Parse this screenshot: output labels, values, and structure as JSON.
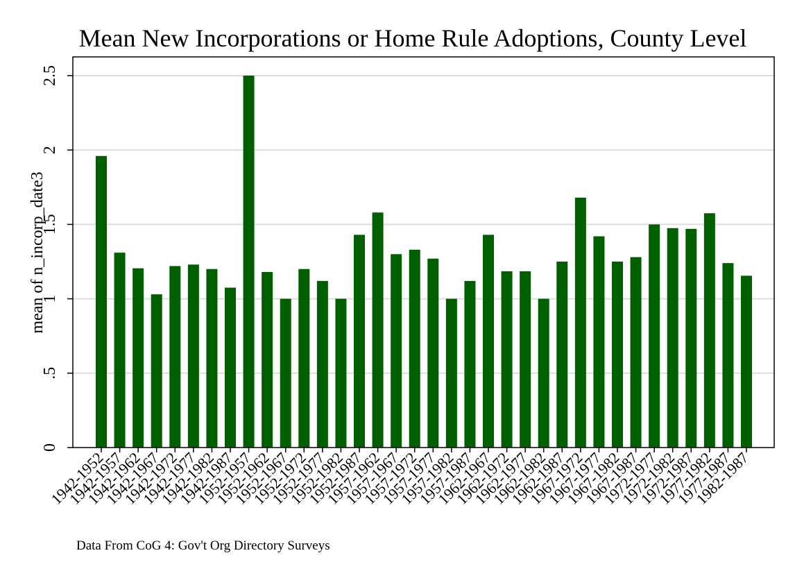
{
  "chart_data": {
    "type": "bar",
    "title": "Mean New Incorporations or Home Rule Adoptions, County Level",
    "xlabel": "",
    "ylabel": "mean of n_incorp_date3",
    "note": "Data From CoG 4: Gov't Org Directory Surveys",
    "ylim": [
      0,
      2.5
    ],
    "yticks": [
      0,
      0.5,
      1,
      1.5,
      2,
      2.5
    ],
    "ytick_labels": [
      "0",
      ".5",
      "1",
      "1.5",
      "2",
      "2.5"
    ],
    "grid": true,
    "bar_color": "#006000",
    "categories": [
      "1942-1952",
      "1942-1957",
      "1942-1962",
      "1942-1967",
      "1942-1972",
      "1942-1977",
      "1942-1982",
      "1942-1987",
      "1952-1957",
      "1952-1962",
      "1952-1967",
      "1952-1972",
      "1952-1977",
      "1952-1982",
      "1952-1987",
      "1957-1962",
      "1957-1967",
      "1957-1972",
      "1957-1977",
      "1957-1982",
      "1957-1987",
      "1962-1967",
      "1962-1972",
      "1962-1977",
      "1962-1982",
      "1962-1987",
      "1967-1972",
      "1967-1977",
      "1967-1982",
      "1967-1987",
      "1972-1977",
      "1972-1982",
      "1972-1987",
      "1977-1982",
      "1977-1987",
      "1982-1987"
    ],
    "values": [
      1.96,
      1.31,
      1.205,
      1.03,
      1.22,
      1.23,
      1.2,
      1.075,
      2.5,
      1.18,
      1.0,
      1.2,
      1.12,
      1.0,
      1.43,
      1.58,
      1.3,
      1.33,
      1.27,
      1.0,
      1.12,
      1.43,
      1.185,
      1.185,
      1.0,
      1.25,
      1.68,
      1.42,
      1.25,
      1.28,
      1.5,
      1.475,
      1.47,
      1.575,
      1.24,
      1.155
    ]
  }
}
